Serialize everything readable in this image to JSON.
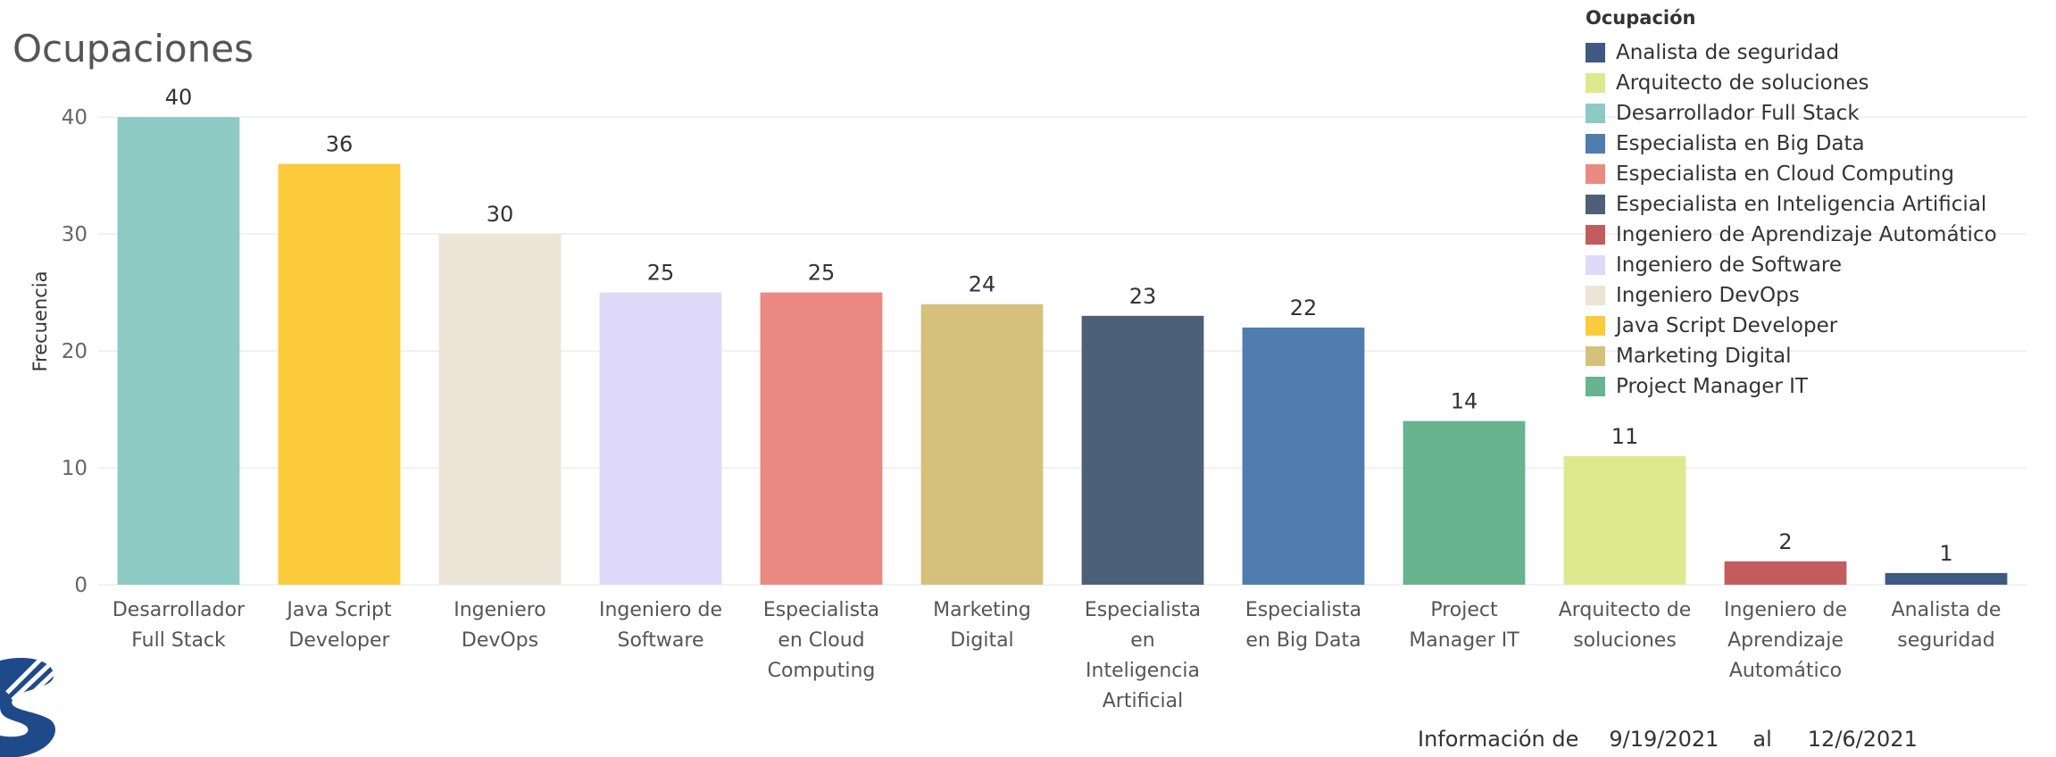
{
  "header": {
    "title": "Ocupaciones"
  },
  "legend": {
    "title": "Ocupación",
    "items": [
      {
        "label": "Analista de seguridad",
        "color": "#3f5a80"
      },
      {
        "label": "Arquitecto de soluciones",
        "color": "#dde98f"
      },
      {
        "label": "Desarrollador Full Stack",
        "color": "#8ccac3"
      },
      {
        "label": "Especialista en Big Data",
        "color": "#4f7db0"
      },
      {
        "label": "Especialista en Cloud Computing",
        "color": "#ea8a82"
      },
      {
        "label": "Especialista en Inteligencia Artificial",
        "color": "#4c6178"
      },
      {
        "label": "Ingeniero de Aprendizaje Automático",
        "color": "#c35c5c"
      },
      {
        "label": "Ingeniero de Software",
        "color": "#dfdafa"
      },
      {
        "label": "Ingeniero DevOps",
        "color": "#ece4d6"
      },
      {
        "label": "Java Script Developer",
        "color": "#fccb3c"
      },
      {
        "label": "Marketing Digital",
        "color": "#d4c27c"
      },
      {
        "label": "Project Manager IT",
        "color": "#67b48f"
      }
    ]
  },
  "footer": {
    "prefix": "Información de",
    "start": "9/19/2021",
    "connector": "al",
    "end": "12/6/2021"
  },
  "chart_data": {
    "type": "bar",
    "title": "Ocupaciones",
    "xlabel": "",
    "ylabel": "Frecuencia",
    "ylim": [
      0,
      42
    ],
    "yticks": [
      0,
      10,
      20,
      30,
      40
    ],
    "grid": true,
    "legend_position": "top-right",
    "categories": [
      "Desarrollador Full Stack",
      "Java Script Developer",
      "Ingeniero DevOps",
      "Ingeniero de Software",
      "Especialista en Cloud Computing",
      "Marketing Digital",
      "Especialista en Inteligencia Artificial",
      "Especialista en Big Data",
      "Project Manager IT",
      "Arquitecto de soluciones",
      "Ingeniero de Aprendizaje Automático",
      "Analista de seguridad"
    ],
    "category_label_lines": [
      [
        "Desarrollador",
        "Full Stack"
      ],
      [
        "Java Script",
        "Developer"
      ],
      [
        "Ingeniero",
        "DevOps"
      ],
      [
        "Ingeniero de",
        "Software"
      ],
      [
        "Especialista",
        "en Cloud",
        "Computing"
      ],
      [
        "Marketing",
        "Digital"
      ],
      [
        "Especialista",
        "en",
        "Inteligencia",
        "Artificial"
      ],
      [
        "Especialista",
        "en Big Data"
      ],
      [
        "Project",
        "Manager IT"
      ],
      [
        "Arquitecto de",
        "soluciones"
      ],
      [
        "Ingeniero de",
        "Aprendizaje",
        "Automático"
      ],
      [
        "Analista de",
        "seguridad"
      ]
    ],
    "values": [
      40,
      36,
      30,
      25,
      25,
      24,
      23,
      22,
      14,
      11,
      2,
      1
    ],
    "colors": [
      "#8ccac3",
      "#fccb3c",
      "#ece4d6",
      "#dfdafa",
      "#ea8a82",
      "#d4c27c",
      "#4c6178",
      "#4f7db0",
      "#67b48f",
      "#dde98f",
      "#c35c5c",
      "#3f5a80"
    ]
  }
}
